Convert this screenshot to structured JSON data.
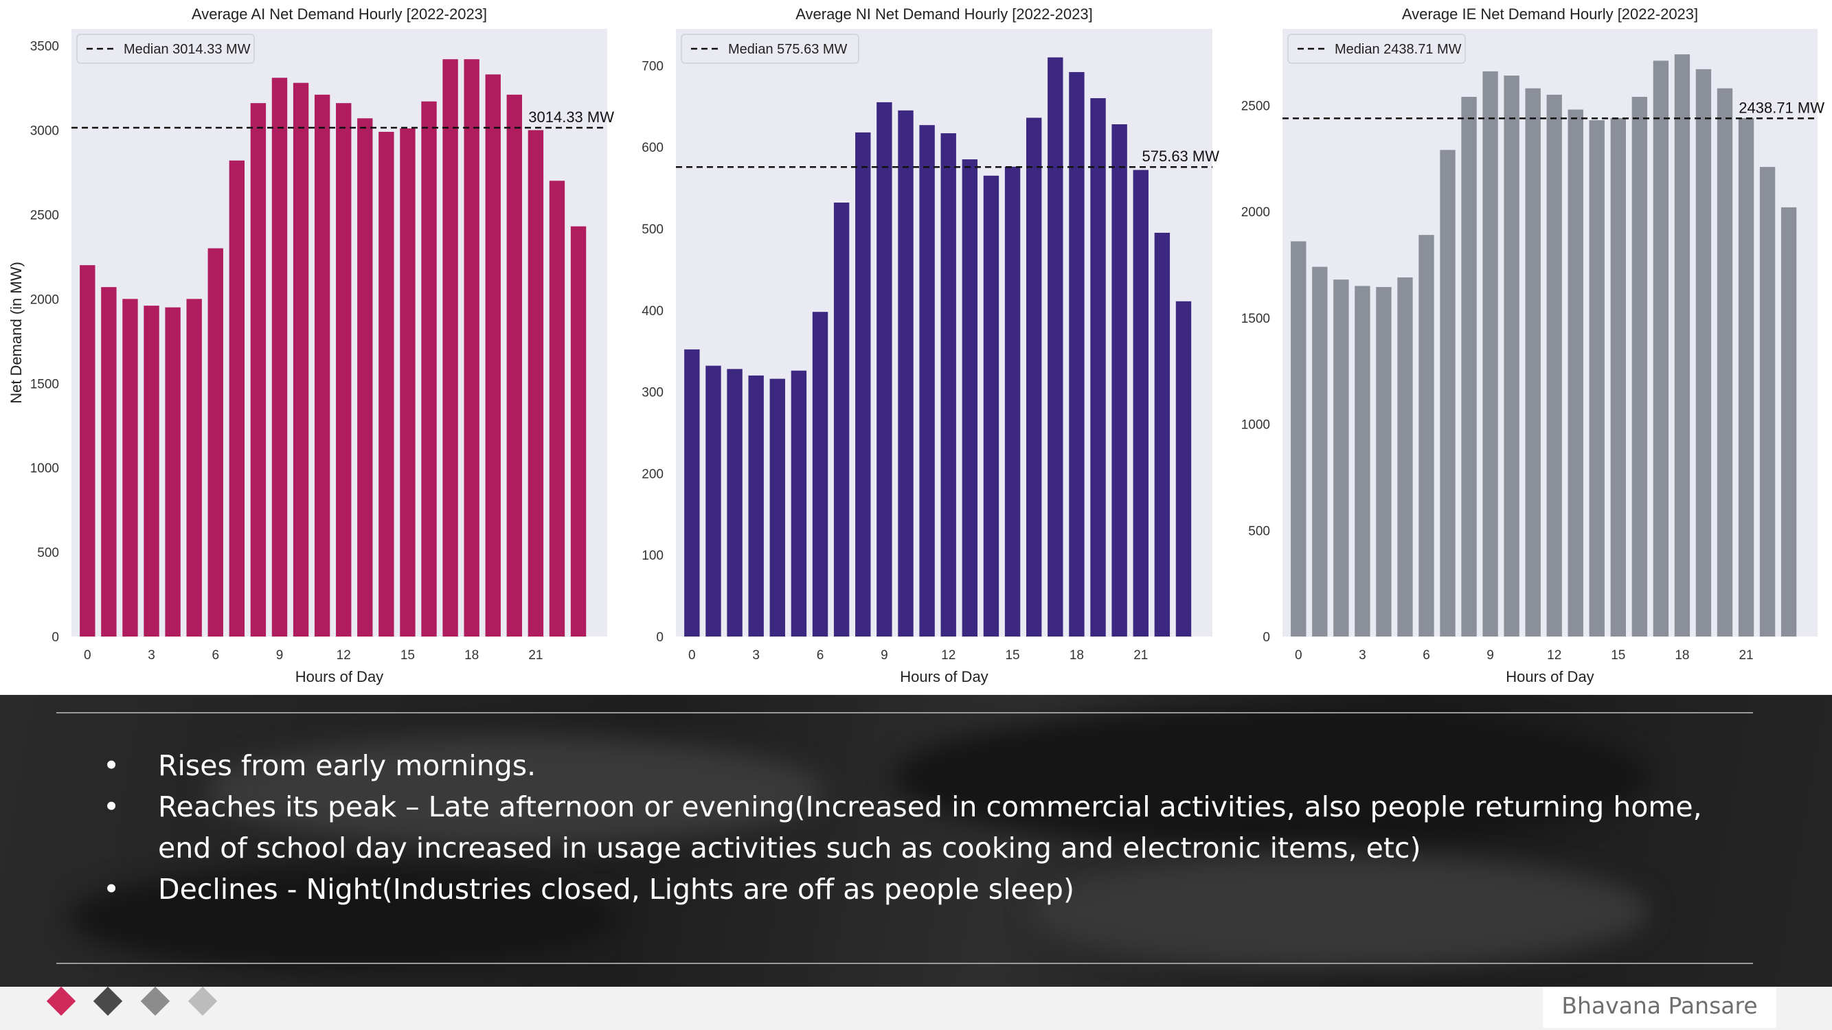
{
  "chart_data": [
    {
      "type": "bar",
      "title": "Average AI Net Demand Hourly [2022-2023]",
      "xlabel": "Hours of Day",
      "ylabel": "Net Demand (in MW)",
      "ylim": [
        0,
        3600
      ],
      "yticks": [
        0,
        500,
        1000,
        1500,
        2000,
        2500,
        3000,
        3500
      ],
      "xticks": [
        0,
        3,
        6,
        9,
        12,
        15,
        18,
        21
      ],
      "x": [
        0,
        1,
        2,
        3,
        4,
        5,
        6,
        7,
        8,
        9,
        10,
        11,
        12,
        13,
        14,
        15,
        16,
        17,
        18,
        19,
        20,
        21,
        22,
        23
      ],
      "values": [
        2200,
        2070,
        2000,
        1960,
        1950,
        2000,
        2300,
        2820,
        3160,
        3310,
        3280,
        3210,
        3160,
        3070,
        2990,
        3010,
        3170,
        3420,
        3420,
        3330,
        3210,
        3000,
        2700,
        2430
      ],
      "color": "#b01d5f",
      "median": 3014.33,
      "median_label": "3014.33 MW",
      "legend": "Median 3014.33 MW",
      "legend_position": "top-left",
      "grid": false
    },
    {
      "type": "bar",
      "title": "Average NI Net Demand Hourly [2022-2023]",
      "xlabel": "Hours of Day",
      "ylabel": "",
      "ylim": [
        0,
        745
      ],
      "yticks": [
        0,
        100,
        200,
        300,
        400,
        500,
        600,
        700
      ],
      "xticks": [
        0,
        3,
        6,
        9,
        12,
        15,
        18,
        21
      ],
      "x": [
        0,
        1,
        2,
        3,
        4,
        5,
        6,
        7,
        8,
        9,
        10,
        11,
        12,
        13,
        14,
        15,
        16,
        17,
        18,
        19,
        20,
        21,
        22,
        23
      ],
      "values": [
        352,
        332,
        328,
        320,
        316,
        326,
        398,
        532,
        618,
        655,
        645,
        627,
        617,
        585,
        565,
        576,
        636,
        710,
        692,
        660,
        628,
        572,
        495,
        411
      ],
      "color": "#3c2880",
      "median": 575.63,
      "median_label": "575.63 MW",
      "legend": "Median 575.63 MW",
      "legend_position": "top-left",
      "grid": false
    },
    {
      "type": "bar",
      "title": "Average IE Net Demand Hourly [2022-2023]",
      "xlabel": "Hours of Day",
      "ylabel": "",
      "ylim": [
        0,
        2860
      ],
      "yticks": [
        0,
        500,
        1000,
        1500,
        2000,
        2500
      ],
      "xticks": [
        0,
        3,
        6,
        9,
        12,
        15,
        18,
        21
      ],
      "x": [
        0,
        1,
        2,
        3,
        4,
        5,
        6,
        7,
        8,
        9,
        10,
        11,
        12,
        13,
        14,
        15,
        16,
        17,
        18,
        19,
        20,
        21,
        22,
        23
      ],
      "values": [
        1860,
        1740,
        1680,
        1650,
        1645,
        1690,
        1890,
        2290,
        2540,
        2660,
        2640,
        2580,
        2550,
        2480,
        2430,
        2440,
        2540,
        2710,
        2740,
        2670,
        2580,
        2440,
        2210,
        2020
      ],
      "color": "#8a8f99",
      "median": 2438.71,
      "median_label": "2438.71 MW",
      "legend": "Median 2438.71 MW",
      "legend_position": "top-left",
      "grid": false
    }
  ],
  "notes": {
    "bullets": [
      "Rises from early mornings.",
      "Reaches its peak – Late afternoon or evening(Increased in commercial activities, also people returning home, end of school day increased in usage activities such as cooking and electronic items, etc)",
      "Declines -  Night(Industries closed, Lights are off as people sleep)"
    ]
  },
  "footer": {
    "author": "Bhavana Pansare",
    "diamond_colors": [
      "#d02a5c",
      "#4a4a4a",
      "#8c8c8c",
      "#bcbcbc"
    ]
  }
}
